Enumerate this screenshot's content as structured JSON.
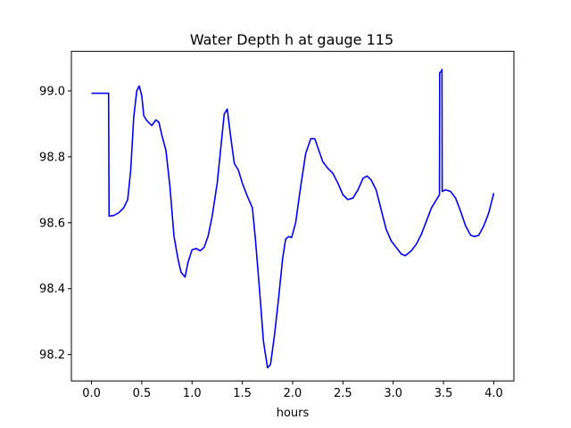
{
  "chart_data": {
    "type": "line",
    "title": "Water Depth h at gauge 115",
    "xlabel": "hours",
    "ylabel": "",
    "xlim": [
      -0.2,
      4.2
    ],
    "ylim": [
      98.12,
      99.12
    ],
    "x_ticks": [
      0.0,
      0.5,
      1.0,
      1.5,
      2.0,
      2.5,
      3.0,
      3.5,
      4.0
    ],
    "x_tick_labels": [
      "0.0",
      "0.5",
      "1.0",
      "1.5",
      "2.0",
      "2.5",
      "3.0",
      "3.5",
      "4.0"
    ],
    "y_ticks": [
      98.2,
      98.4,
      98.6,
      98.8,
      99.0
    ],
    "y_tick_labels": [
      "98.2",
      "98.4",
      "98.6",
      "98.8",
      "99.0"
    ],
    "grid": false,
    "legend": "none",
    "series": [
      {
        "color": "#0000ff",
        "points": [
          [
            0.0,
            98.993
          ],
          [
            0.1,
            98.993
          ],
          [
            0.17,
            98.993
          ],
          [
            0.175,
            98.62
          ],
          [
            0.22,
            98.622
          ],
          [
            0.27,
            98.63
          ],
          [
            0.32,
            98.645
          ],
          [
            0.36,
            98.67
          ],
          [
            0.39,
            98.76
          ],
          [
            0.42,
            98.92
          ],
          [
            0.45,
            99.0
          ],
          [
            0.475,
            99.015
          ],
          [
            0.5,
            98.985
          ],
          [
            0.52,
            98.925
          ],
          [
            0.55,
            98.91
          ],
          [
            0.6,
            98.895
          ],
          [
            0.64,
            98.912
          ],
          [
            0.67,
            98.905
          ],
          [
            0.7,
            98.865
          ],
          [
            0.74,
            98.82
          ],
          [
            0.78,
            98.71
          ],
          [
            0.82,
            98.56
          ],
          [
            0.86,
            98.49
          ],
          [
            0.89,
            98.45
          ],
          [
            0.93,
            98.435
          ],
          [
            0.96,
            98.48
          ],
          [
            1.0,
            98.518
          ],
          [
            1.04,
            98.522
          ],
          [
            1.08,
            98.515
          ],
          [
            1.12,
            98.525
          ],
          [
            1.16,
            98.56
          ],
          [
            1.2,
            98.62
          ],
          [
            1.25,
            98.72
          ],
          [
            1.29,
            98.84
          ],
          [
            1.32,
            98.93
          ],
          [
            1.35,
            98.945
          ],
          [
            1.38,
            98.87
          ],
          [
            1.42,
            98.78
          ],
          [
            1.46,
            98.76
          ],
          [
            1.5,
            98.72
          ],
          [
            1.55,
            98.68
          ],
          [
            1.6,
            98.645
          ],
          [
            1.63,
            98.55
          ],
          [
            1.67,
            98.4
          ],
          [
            1.71,
            98.24
          ],
          [
            1.75,
            98.16
          ],
          [
            1.78,
            98.17
          ],
          [
            1.82,
            98.26
          ],
          [
            1.86,
            98.37
          ],
          [
            1.9,
            98.49
          ],
          [
            1.93,
            98.55
          ],
          [
            1.96,
            98.558
          ],
          [
            1.99,
            98.555
          ],
          [
            2.03,
            98.6
          ],
          [
            2.08,
            98.71
          ],
          [
            2.13,
            98.81
          ],
          [
            2.18,
            98.855
          ],
          [
            2.22,
            98.855
          ],
          [
            2.26,
            98.82
          ],
          [
            2.3,
            98.785
          ],
          [
            2.35,
            98.765
          ],
          [
            2.4,
            98.75
          ],
          [
            2.45,
            98.72
          ],
          [
            2.5,
            98.685
          ],
          [
            2.55,
            98.67
          ],
          [
            2.6,
            98.675
          ],
          [
            2.65,
            98.7
          ],
          [
            2.7,
            98.735
          ],
          [
            2.74,
            98.742
          ],
          [
            2.78,
            98.73
          ],
          [
            2.83,
            98.7
          ],
          [
            2.88,
            98.64
          ],
          [
            2.93,
            98.58
          ],
          [
            2.98,
            98.545
          ],
          [
            3.03,
            98.525
          ],
          [
            3.08,
            98.505
          ],
          [
            3.12,
            98.5
          ],
          [
            3.18,
            98.515
          ],
          [
            3.23,
            98.535
          ],
          [
            3.28,
            98.565
          ],
          [
            3.33,
            98.605
          ],
          [
            3.38,
            98.645
          ],
          [
            3.43,
            98.67
          ],
          [
            3.46,
            98.685
          ],
          [
            3.462,
            99.055
          ],
          [
            3.48,
            99.06
          ],
          [
            3.485,
            99.065
          ],
          [
            3.487,
            98.695
          ],
          [
            3.52,
            98.7
          ],
          [
            3.57,
            98.695
          ],
          [
            3.62,
            98.675
          ],
          [
            3.67,
            98.635
          ],
          [
            3.72,
            98.59
          ],
          [
            3.77,
            98.562
          ],
          [
            3.81,
            98.558
          ],
          [
            3.85,
            98.562
          ],
          [
            3.9,
            98.59
          ],
          [
            3.95,
            98.63
          ],
          [
            4.0,
            98.69
          ]
        ]
      }
    ]
  }
}
